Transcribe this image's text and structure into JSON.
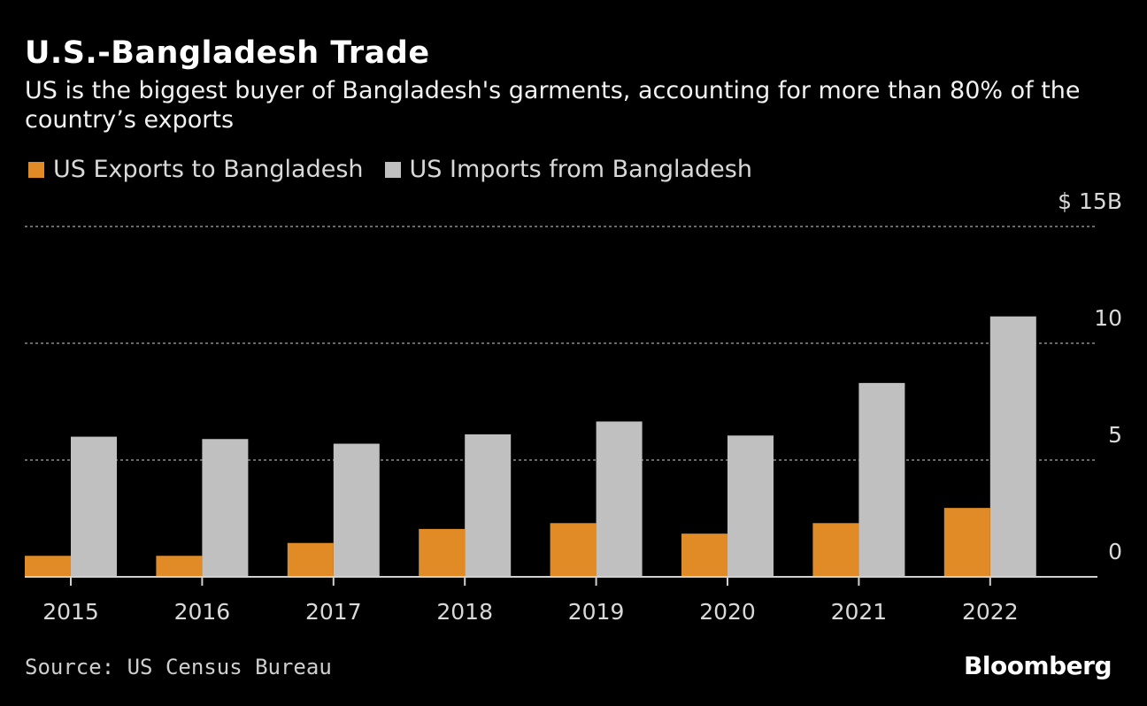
{
  "header": {
    "title": "U.S.-Bangladesh Trade",
    "subtitle": "US is the biggest buyer of Bangladesh's garments, accounting for more than 80% of the country’s exports"
  },
  "footer": {
    "source": "Source: US Census Bureau",
    "brand": "Bloomberg"
  },
  "colors": {
    "exports": "#e08b25",
    "imports": "#c0c0c0",
    "grid": "#8a8a8a",
    "axis": "#d0d0d0"
  },
  "chart_data": {
    "type": "bar",
    "title": "U.S.-Bangladesh Trade",
    "xlabel": "",
    "ylabel": "",
    "ylim": [
      0,
      15
    ],
    "yticks": [
      0,
      5,
      10,
      15
    ],
    "ytick_labels": [
      "0",
      "5",
      "10",
      "$ 15B"
    ],
    "grid": true,
    "legend_position": "top-left",
    "categories": [
      "2015",
      "2016",
      "2017",
      "2018",
      "2019",
      "2020",
      "2021",
      "2022"
    ],
    "series": [
      {
        "name": "US Exports to Bangladesh",
        "values": [
          0.9,
          0.9,
          1.45,
          2.05,
          2.3,
          1.85,
          2.3,
          2.95
        ]
      },
      {
        "name": "US Imports from Bangladesh",
        "values": [
          6.0,
          5.9,
          5.7,
          6.1,
          6.65,
          6.05,
          8.3,
          11.15
        ]
      }
    ]
  }
}
